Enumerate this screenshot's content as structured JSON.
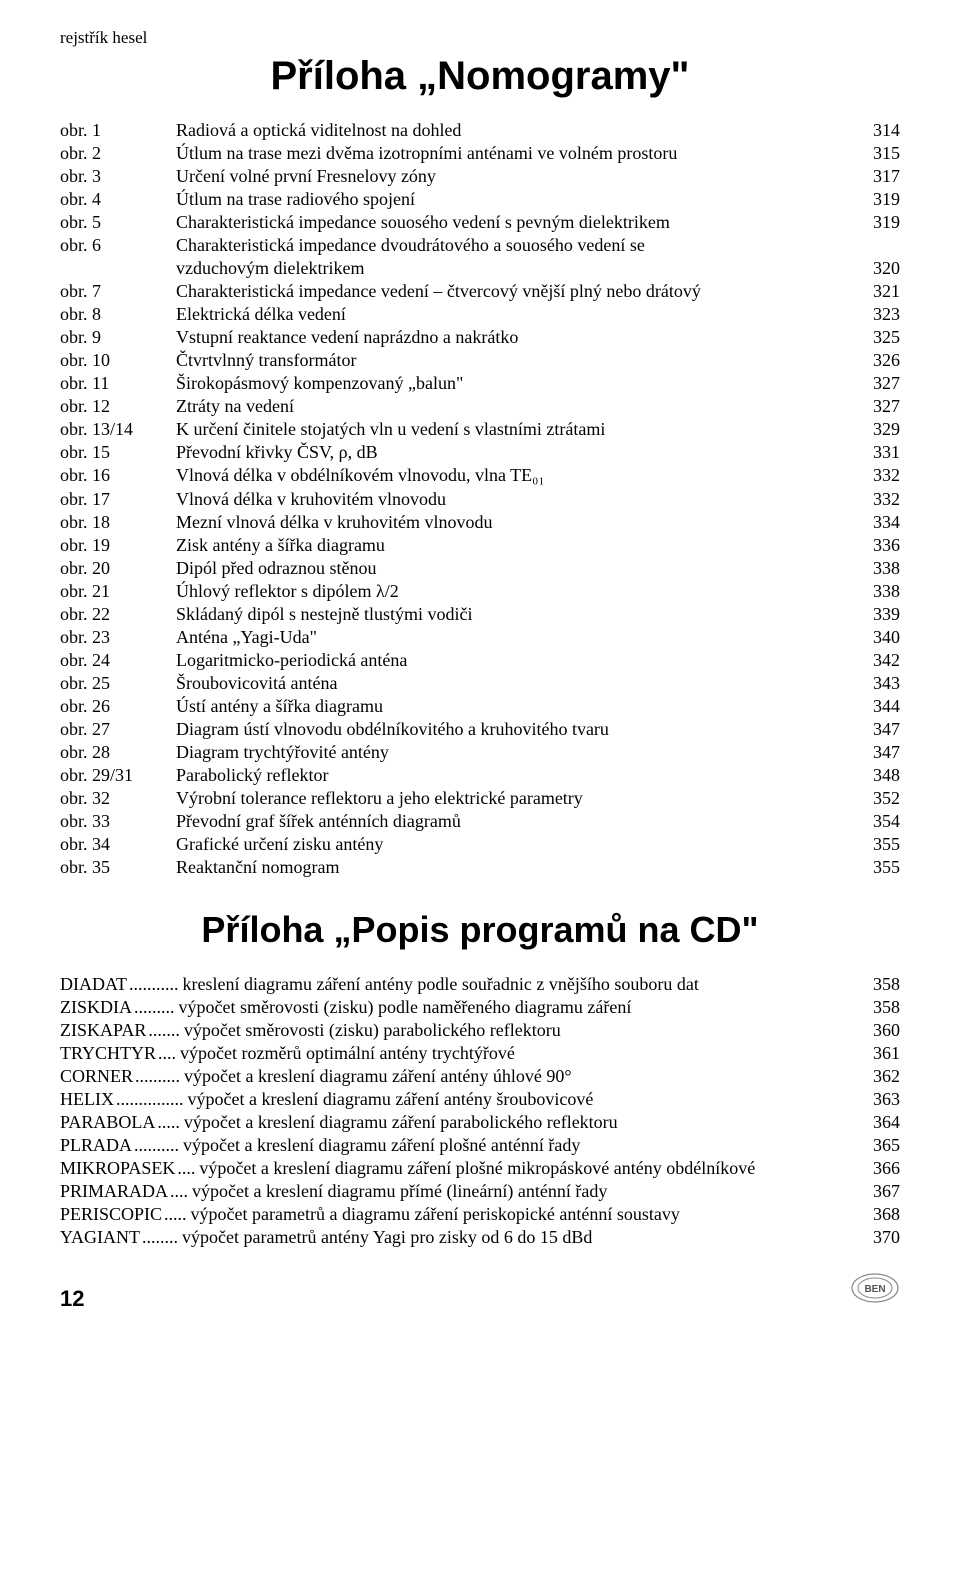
{
  "header_label": "rejstřík hesel",
  "main_title": "Příloha „Nomogramy\"",
  "sub_title": "Příloha „Popis programů na CD\"",
  "page_number": "12",
  "toc": [
    {
      "key": "obr. 1",
      "desc": "Radiová a optická viditelnost na dohled",
      "page": "314"
    },
    {
      "key": "obr. 2",
      "desc": "Útlum na trase mezi dvěma izotropními anténami ve volném prostoru",
      "page": "315"
    },
    {
      "key": "obr. 3",
      "desc": "Určení volné první Fresnelovy zóny",
      "page": "317"
    },
    {
      "key": "obr. 4",
      "desc": "Útlum na trase radiového spojení",
      "page": "319"
    },
    {
      "key": "obr. 5",
      "desc": "Charakteristická impedance souosého vedení s pevným dielektrikem",
      "page": "319"
    },
    {
      "key": "obr. 6",
      "desc": "Charakteristická impedance dvoudrátového a souosého vedení se",
      "page": ""
    },
    {
      "key": "",
      "desc": "vzduchovým dielektrikem",
      "page": "320",
      "cont": true
    },
    {
      "key": "obr. 7",
      "desc": "Charakteristická impedance vedení – čtvercový vnější plný nebo drátový",
      "page": "321"
    },
    {
      "key": "obr. 8",
      "desc": "Elektrická délka vedení",
      "page": "323"
    },
    {
      "key": "obr. 9",
      "desc": "Vstupní reaktance vedení naprázdno a nakrátko",
      "page": "325"
    },
    {
      "key": "obr. 10",
      "desc": "Čtvrtvlnný transformátor",
      "page": "326"
    },
    {
      "key": "obr. 11",
      "desc": "Širokopásmový kompenzovaný „balun\"",
      "page": "327"
    },
    {
      "key": "obr. 12",
      "desc": "Ztráty na vedení",
      "page": "327"
    },
    {
      "key": "obr. 13/14",
      "desc": "K určení činitele stojatých vln u vedení s vlastními ztrátami",
      "page": "329"
    },
    {
      "key": "obr. 15",
      "desc": "Převodní křivky ČSV, ρ, dB",
      "page": "331"
    },
    {
      "key": "obr. 16",
      "desc": "Vlnová délka v obdélníkovém vlnovodu, vlna TE₀₁",
      "page": "332"
    },
    {
      "key": "obr. 17",
      "desc": "Vlnová délka v kruhovitém vlnovodu",
      "page": "332"
    },
    {
      "key": "obr. 18",
      "desc": "Mezní vlnová délka v kruhovitém vlnovodu",
      "page": "334"
    },
    {
      "key": "obr. 19",
      "desc": "Zisk antény a šířka diagramu",
      "page": "336"
    },
    {
      "key": "obr. 20",
      "desc": "Dipól před odraznou stěnou",
      "page": "338"
    },
    {
      "key": "obr. 21",
      "desc": "Úhlový reflektor s dipólem λ/2",
      "page": "338"
    },
    {
      "key": "obr. 22",
      "desc": "Skládaný dipól s nestejně tlustými vodiči",
      "page": "339"
    },
    {
      "key": "obr. 23",
      "desc": "Anténa „Yagi-Uda\"",
      "page": "340"
    },
    {
      "key": "obr. 24",
      "desc": "Logaritmicko-periodická anténa",
      "page": "342"
    },
    {
      "key": "obr. 25",
      "desc": "Šroubovicovitá anténa",
      "page": "343"
    },
    {
      "key": "obr. 26",
      "desc": "Ústí antény a šířka diagramu",
      "page": "344"
    },
    {
      "key": "obr. 27",
      "desc": "Diagram ústí vlnovodu obdélníkovitého a kruhovitého tvaru",
      "page": "347"
    },
    {
      "key": "obr. 28",
      "desc": "Diagram trychtýřovité antény",
      "page": "347"
    },
    {
      "key": "obr. 29/31",
      "desc": "Parabolický reflektor",
      "page": "348"
    },
    {
      "key": "obr. 32",
      "desc": "Výrobní tolerance reflektoru a jeho elektrické parametry",
      "page": "352"
    },
    {
      "key": "obr. 33",
      "desc": "Převodní graf šířek anténních diagramů",
      "page": "354"
    },
    {
      "key": "obr. 34",
      "desc": "Grafické určení zisku antény",
      "page": "355"
    },
    {
      "key": "obr. 35",
      "desc": "Reaktanční nomogram",
      "page": "355"
    }
  ],
  "programs": [
    {
      "name": "DIADAT",
      "dots": "...........",
      "desc": "kreslení diagramu záření antény podle souřadnic z vnějšího souboru dat",
      "page": "358"
    },
    {
      "name": "ZISKDIA",
      "dots": ".........",
      "desc": "výpočet směrovosti (zisku) podle naměřeného diagramu záření",
      "page": "358"
    },
    {
      "name": "ZISKAPAR",
      "dots": ".......",
      "desc": "výpočet směrovosti (zisku) parabolického reflektoru",
      "page": "360"
    },
    {
      "name": "TRYCHTYR",
      "dots": "....",
      "desc": "výpočet rozměrů optimální antény trychtýřové",
      "page": "361"
    },
    {
      "name": "CORNER",
      "dots": "..........",
      "desc": "výpočet a kreslení diagramu záření antény úhlové 90°",
      "page": "362"
    },
    {
      "name": "HELIX",
      "dots": "...............",
      "desc": "výpočet a kreslení diagramu záření antény šroubovicové",
      "page": "363"
    },
    {
      "name": "PARABOLA",
      "dots": ".....",
      "desc": "výpočet a kreslení diagramu záření parabolického reflektoru",
      "page": "364"
    },
    {
      "name": "PLRADA",
      "dots": "..........",
      "desc": "výpočet a kreslení diagramu záření plošné anténní řady",
      "page": "365"
    },
    {
      "name": "MIKROPASEK",
      "dots": "....",
      "desc": "výpočet a kreslení diagramu záření plošné mikropáskové antény obdélníkové",
      "page": "366"
    },
    {
      "name": "PRIMARADA",
      "dots": "....",
      "desc": "výpočet a kreslení diagramu přímé (lineární) anténní řady",
      "page": "367"
    },
    {
      "name": "PERISCOPIC",
      "dots": ".....",
      "desc": "výpočet parametrů a diagramu záření periskopické anténní soustavy",
      "page": "368"
    },
    {
      "name": "YAGIANT",
      "dots": "........",
      "desc": "výpočet parametrů antény Yagi pro zisky od 6 do 15 dBd",
      "page": "370"
    }
  ]
}
